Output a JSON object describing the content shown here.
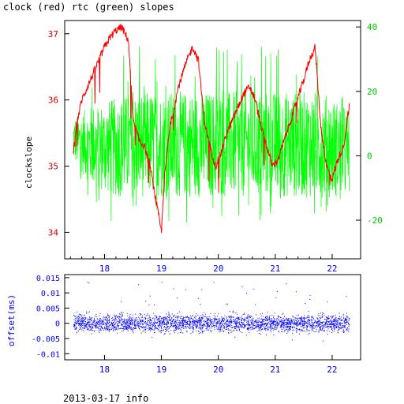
{
  "title": "clock (red) rtc (green) slopes",
  "footer": "2013-03-17 info",
  "chart_data": [
    {
      "type": "line",
      "name": "top-panel",
      "ylabel_left": "clockslope",
      "ylabel_right": "",
      "xlim": [
        17.3,
        22.5
      ],
      "ylim_left": [
        33.6,
        37.2
      ],
      "ylim_right": [
        -32,
        42
      ],
      "x_ticks": [
        "18",
        "19",
        "20",
        "21",
        "22"
      ],
      "y_ticks_left": [
        "34",
        "35",
        "36",
        "37"
      ],
      "y_ticks_right": [
        "-20",
        "0",
        "20",
        "40"
      ],
      "colors": {
        "clock": "#ff0000",
        "rtc": "#00ff00",
        "left_axis": "#cc0000",
        "right_axis": "#00cc00",
        "frame": "#000000"
      },
      "series": [
        {
          "axis": "left",
          "color": "#ff0000",
          "x": [
            17.45,
            17.5,
            17.55,
            17.6,
            17.7,
            17.8,
            17.9,
            18.0,
            18.1,
            18.2,
            18.3,
            18.42,
            18.5,
            18.6,
            18.7,
            18.8,
            18.9,
            19.0,
            19.05,
            19.15,
            19.3,
            19.45,
            19.55,
            19.65,
            19.75,
            19.85,
            19.95,
            20.05,
            20.15,
            20.3,
            20.45,
            20.55,
            20.65,
            20.75,
            20.85,
            20.95,
            21.05,
            21.2,
            21.35,
            21.5,
            21.6,
            21.7,
            21.8,
            21.9,
            22.0,
            22.1,
            22.2,
            22.3
          ],
          "y": [
            35.2,
            35.6,
            35.8,
            36.0,
            36.2,
            36.4,
            36.6,
            36.8,
            36.95,
            37.05,
            37.1,
            36.9,
            35.7,
            35.4,
            35.3,
            35.0,
            34.5,
            34.0,
            34.8,
            35.6,
            36.2,
            36.6,
            36.8,
            36.6,
            35.7,
            35.3,
            35.0,
            35.2,
            35.5,
            35.8,
            36.1,
            36.2,
            36.0,
            35.6,
            35.3,
            35.0,
            35.1,
            35.5,
            35.9,
            36.3,
            36.6,
            36.8,
            35.6,
            35.0,
            34.8,
            35.1,
            35.3,
            35.9
          ]
        },
        {
          "axis": "right",
          "color": "#00ff00",
          "note_envelope_lower": [
            -2,
            -10,
            -13,
            -13,
            -13,
            -13,
            -13,
            -13,
            -13,
            -13,
            -13,
            -13,
            -13
          ],
          "note_envelope_upper": [
            12,
            16,
            18,
            20,
            20,
            20,
            20,
            20,
            20,
            20,
            20,
            20,
            15
          ],
          "x": [
            17.45,
            17.8,
            18.2,
            18.6,
            19.0,
            19.4,
            19.8,
            20.2,
            20.6,
            21.0,
            21.4,
            21.8,
            22.3
          ]
        }
      ]
    },
    {
      "type": "scatter",
      "name": "bottom-panel",
      "ylabel": "offset(ms)",
      "xlim": [
        17.3,
        22.5
      ],
      "ylim": [
        -0.012,
        0.016
      ],
      "x_ticks": [
        "18",
        "19",
        "20",
        "21",
        "22"
      ],
      "y_ticks": [
        "0.015",
        "0.01",
        "0.005",
        "0",
        "-0.005",
        "-0.01"
      ],
      "color": "#0000ff",
      "x": [
        17.45,
        22.3
      ],
      "y_band": [
        -0.003,
        0.003
      ]
    }
  ]
}
